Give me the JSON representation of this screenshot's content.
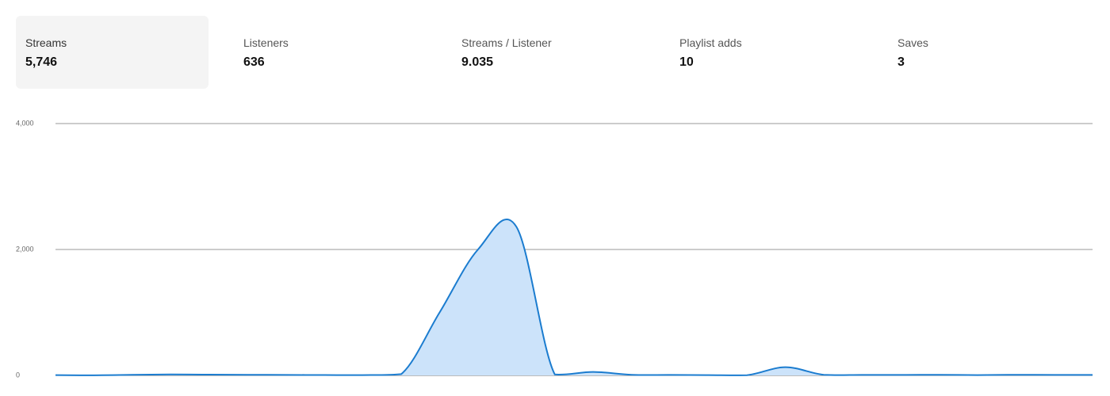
{
  "stats": [
    {
      "label": "Streams",
      "value": "5,746"
    },
    {
      "label": "Listeners",
      "value": "636"
    },
    {
      "label": "Streams / Listener",
      "value": "9.035"
    },
    {
      "label": "Playlist adds",
      "value": "10"
    },
    {
      "label": "Saves",
      "value": "3"
    }
  ],
  "chart_data": {
    "type": "area",
    "values": [
      5,
      2,
      10,
      15,
      12,
      10,
      8,
      6,
      5,
      20,
      1000,
      2000,
      2360,
      15,
      55,
      10,
      8,
      5,
      3,
      130,
      10,
      8,
      8,
      10,
      5,
      10,
      8,
      8
    ],
    "color": "#1b7ccf",
    "fill": "#cce3fa",
    "ylim": [
      0,
      4000
    ],
    "yticks": [
      0,
      {
        "value": 2000,
        "label": "2,000"
      },
      {
        "value": 4000,
        "label": "4,000"
      }
    ],
    "grid": true
  }
}
